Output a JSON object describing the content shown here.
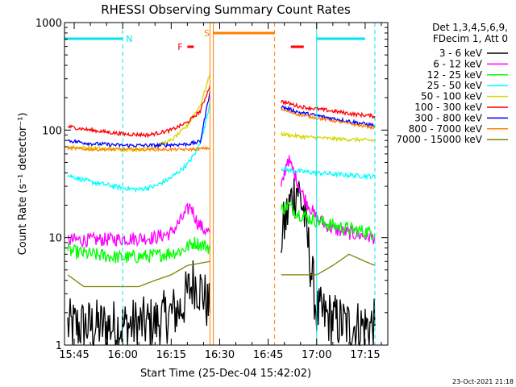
{
  "chart_data": {
    "type": "line",
    "title": "RHESSI Observing Summary Count Rates",
    "xlabel": "Start Time (25-Dec-04 15:42:02)",
    "ylabel": "Count Rate (s⁻¹ detector⁻¹)",
    "y_scale": "log",
    "ylim": [
      1,
      1000
    ],
    "y_ticks": [
      "1",
      "10",
      "100",
      "1000"
    ],
    "xlim": [
      "15:42",
      "17:22"
    ],
    "x_ticks": [
      "15:45",
      "16:00",
      "16:15",
      "16:30",
      "16:45",
      "17:00",
      "17:15"
    ],
    "footer": "23-Oct-2021 21:18",
    "legend": {
      "placement": "right",
      "header": [
        "Det 1,3,4,5,6,9,",
        "FDecim 1, Att 0"
      ]
    },
    "flags": [
      {
        "label": "N",
        "color": "#00e5ee",
        "segments": [
          [
            "15:42",
            "16:00"
          ],
          [
            "17:00",
            "17:15"
          ]
        ]
      },
      {
        "label": "S",
        "color": "#ff8000",
        "segments": [
          [
            "16:28",
            "16:47"
          ]
        ]
      },
      {
        "label": "F",
        "color": "#ff0000",
        "segments": [
          [
            "16:20",
            "16:22"
          ],
          [
            "16:52",
            "16:56"
          ]
        ]
      }
    ],
    "markers": [
      {
        "time": "16:00",
        "color": "#00e5ee",
        "style": "dashed"
      },
      {
        "time": "16:27",
        "color": "#ff8000",
        "style": "solid"
      },
      {
        "time": "16:28",
        "color": "#ff8000",
        "style": "solid"
      },
      {
        "time": "16:47",
        "color": "#ff8000",
        "style": "dashed"
      },
      {
        "time": "17:00",
        "color": "#00e5ee",
        "style": "solid"
      },
      {
        "time": "17:18",
        "color": "#00e5ee",
        "style": "dashed"
      }
    ],
    "gap": [
      "16:28",
      "16:48"
    ],
    "series": [
      {
        "name": "3 - 6 keV",
        "color": "#000000",
        "noise": 0.6,
        "points": [
          [
            "15:43",
            1.5
          ],
          [
            "15:50",
            1.5
          ],
          [
            "16:00",
            1.5
          ],
          [
            "16:10",
            1.6
          ],
          [
            "16:18",
            2.2
          ],
          [
            "16:22",
            4
          ],
          [
            "16:25",
            3
          ],
          [
            "16:27",
            2
          ],
          [
            "16:49",
            10
          ],
          [
            "16:52",
            22
          ],
          [
            "16:54",
            30
          ],
          [
            "16:56",
            18
          ],
          [
            "16:58",
            6
          ],
          [
            "17:00",
            2
          ],
          [
            "17:10",
            1.5
          ],
          [
            "17:18",
            1.5
          ]
        ]
      },
      {
        "name": "6 - 12 keV",
        "color": "#ff00ff",
        "noise": 0.15,
        "points": [
          [
            "15:43",
            9.5
          ],
          [
            "15:50",
            9.5
          ],
          [
            "16:00",
            9.7
          ],
          [
            "16:10",
            10
          ],
          [
            "16:15",
            11
          ],
          [
            "16:19",
            16
          ],
          [
            "16:21",
            20
          ],
          [
            "16:23",
            14
          ],
          [
            "16:25",
            12
          ],
          [
            "16:27",
            11
          ],
          [
            "16:49",
            28
          ],
          [
            "16:51",
            55
          ],
          [
            "16:53",
            40
          ],
          [
            "16:56",
            24
          ],
          [
            "17:00",
            15
          ],
          [
            "17:05",
            12
          ],
          [
            "17:10",
            11
          ],
          [
            "17:18",
            10
          ]
        ]
      },
      {
        "name": "12 - 25 keV",
        "color": "#00ff00",
        "noise": 0.15,
        "points": [
          [
            "15:43",
            7.5
          ],
          [
            "15:50",
            7
          ],
          [
            "16:00",
            6.5
          ],
          [
            "16:10",
            6.8
          ],
          [
            "16:18",
            7.5
          ],
          [
            "16:22",
            9
          ],
          [
            "16:25",
            8.5
          ],
          [
            "16:27",
            8
          ],
          [
            "16:49",
            18
          ],
          [
            "16:51",
            20
          ],
          [
            "16:54",
            17
          ],
          [
            "16:58",
            15
          ],
          [
            "17:05",
            13
          ],
          [
            "17:10",
            12
          ],
          [
            "17:18",
            11
          ]
        ]
      },
      {
        "name": "25 - 50 keV",
        "color": "#00ffff",
        "noise": 0.05,
        "points": [
          [
            "15:43",
            38
          ],
          [
            "15:50",
            33
          ],
          [
            "16:00",
            29
          ],
          [
            "16:05",
            28
          ],
          [
            "16:10",
            30
          ],
          [
            "16:15",
            36
          ],
          [
            "16:20",
            48
          ],
          [
            "16:23",
            65
          ],
          [
            "16:25",
            95
          ],
          [
            "16:27",
            180
          ],
          [
            "16:49",
            44
          ],
          [
            "16:52",
            42
          ],
          [
            "17:00",
            40
          ],
          [
            "17:10",
            38
          ],
          [
            "17:18",
            37
          ]
        ]
      },
      {
        "name": "50 - 100 keV",
        "color": "#d6d600",
        "noise": 0.04,
        "points": [
          [
            "15:43",
            70
          ],
          [
            "15:50",
            68
          ],
          [
            "16:00",
            66
          ],
          [
            "16:08",
            67
          ],
          [
            "16:15",
            80
          ],
          [
            "16:20",
            110
          ],
          [
            "16:24",
            170
          ],
          [
            "16:27",
            330
          ],
          [
            "16:49",
            92
          ],
          [
            "16:55",
            87
          ],
          [
            "17:05",
            83
          ],
          [
            "17:18",
            80
          ]
        ]
      },
      {
        "name": "100 - 300 keV",
        "color": "#ff0000",
        "noise": 0.04,
        "points": [
          [
            "15:43",
            108
          ],
          [
            "15:50",
            100
          ],
          [
            "16:00",
            92
          ],
          [
            "16:08",
            90
          ],
          [
            "16:15",
            100
          ],
          [
            "16:20",
            118
          ],
          [
            "16:24",
            150
          ],
          [
            "16:27",
            260
          ],
          [
            "16:49",
            185
          ],
          [
            "16:55",
            165
          ],
          [
            "17:05",
            150
          ],
          [
            "17:12",
            140
          ],
          [
            "17:18",
            135
          ]
        ]
      },
      {
        "name": "300 - 800 keV",
        "color": "#0000ff",
        "noise": 0.04,
        "points": [
          [
            "15:43",
            80
          ],
          [
            "15:50",
            75
          ],
          [
            "16:00",
            72
          ],
          [
            "16:10",
            72
          ],
          [
            "16:20",
            74
          ],
          [
            "16:24",
            78
          ],
          [
            "16:27",
            230
          ],
          [
            "16:49",
            165
          ],
          [
            "16:55",
            145
          ],
          [
            "17:05",
            128
          ],
          [
            "17:12",
            118
          ],
          [
            "17:18",
            110
          ]
        ]
      },
      {
        "name": "800 - 7000 keV",
        "color": "#ff8000",
        "noise": 0.03,
        "points": [
          [
            "15:43",
            68
          ],
          [
            "15:50",
            66
          ],
          [
            "16:00",
            66
          ],
          [
            "16:10",
            66
          ],
          [
            "16:20",
            66
          ],
          [
            "16:24",
            67
          ],
          [
            "16:27",
            68
          ],
          [
            "16:49",
            155
          ],
          [
            "16:55",
            138
          ],
          [
            "17:05",
            122
          ],
          [
            "17:12",
            112
          ],
          [
            "17:18",
            105
          ]
        ]
      },
      {
        "name": "7000 - 15000 keV",
        "color": "#808000",
        "noise": 0,
        "points": [
          [
            "15:43",
            4.5
          ],
          [
            "15:48",
            3.5
          ],
          [
            "15:55",
            3.5
          ],
          [
            "16:05",
            3.5
          ],
          [
            "16:10",
            4
          ],
          [
            "16:15",
            4.5
          ],
          [
            "16:20",
            5.5
          ],
          [
            "16:27",
            6
          ],
          [
            "16:49",
            4.5
          ],
          [
            "16:55",
            4.5
          ],
          [
            "17:00",
            4.5
          ],
          [
            "17:05",
            5.5
          ],
          [
            "17:10",
            7
          ],
          [
            "17:15",
            6
          ],
          [
            "17:18",
            5.5
          ]
        ]
      }
    ]
  }
}
